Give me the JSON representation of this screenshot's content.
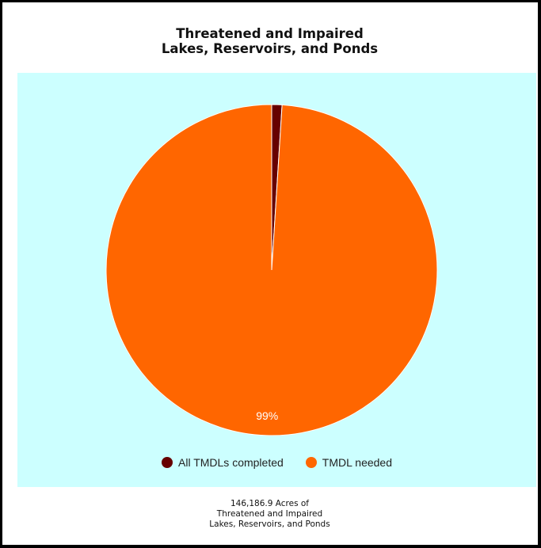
{
  "chart_data": {
    "type": "pie",
    "title": [
      "Threatened and Impaired",
      "Lakes, Reservoirs, and Ponds"
    ],
    "categories": [
      "All TMDLs completed",
      "TMDL needed"
    ],
    "values": [
      1,
      99
    ],
    "colors": [
      "#660000",
      "#ff6600"
    ],
    "data_labels": [
      "",
      "99%"
    ],
    "plot_background": "#ccffff",
    "legend_position": "bottom-center",
    "footnote": [
      "146,186.9 Acres of",
      "Threatened and Impaired",
      "Lakes, Reservoirs, and Ponds"
    ]
  }
}
